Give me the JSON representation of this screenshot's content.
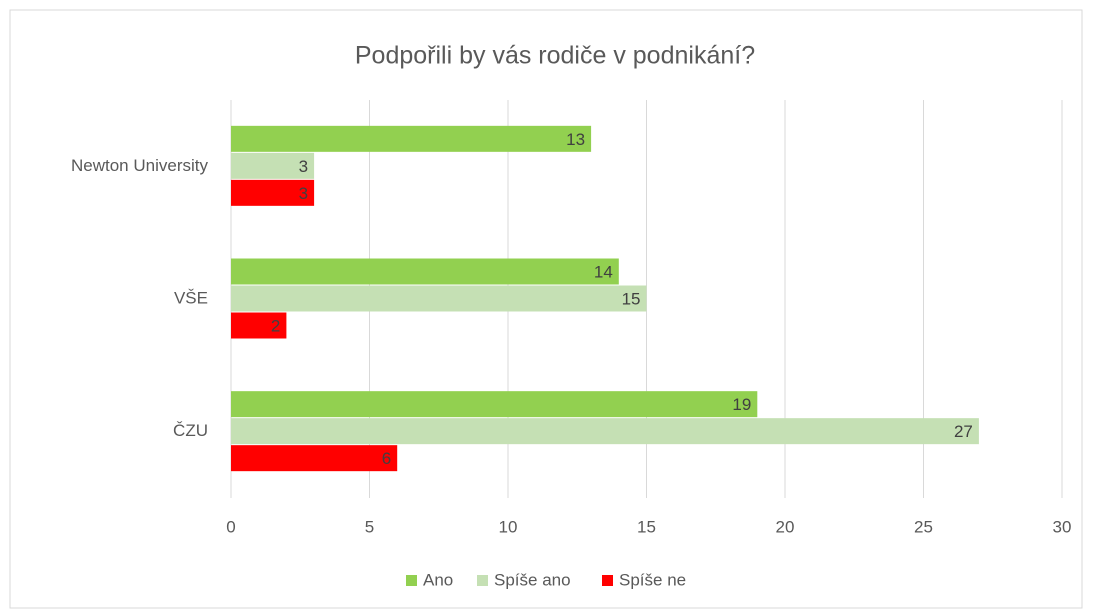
{
  "chart_data": {
    "type": "hbar",
    "title": "Podpořili by vás rodiče v podnikání?",
    "categories": [
      "Newton University",
      "VŠE",
      "ČZU"
    ],
    "series": [
      {
        "name": "Ano",
        "color": "#92d050",
        "values": [
          13,
          14,
          19
        ]
      },
      {
        "name": "Spíše ano",
        "color": "#c5e0b4",
        "values": [
          3,
          15,
          27
        ]
      },
      {
        "name": "Spíše ne",
        "color": "#ff0000",
        "values": [
          3,
          2,
          6
        ]
      }
    ],
    "xlim": [
      0,
      30
    ],
    "xticks": [
      0,
      5,
      10,
      15,
      20,
      25,
      30
    ],
    "grid": true,
    "legend": "bottom"
  }
}
